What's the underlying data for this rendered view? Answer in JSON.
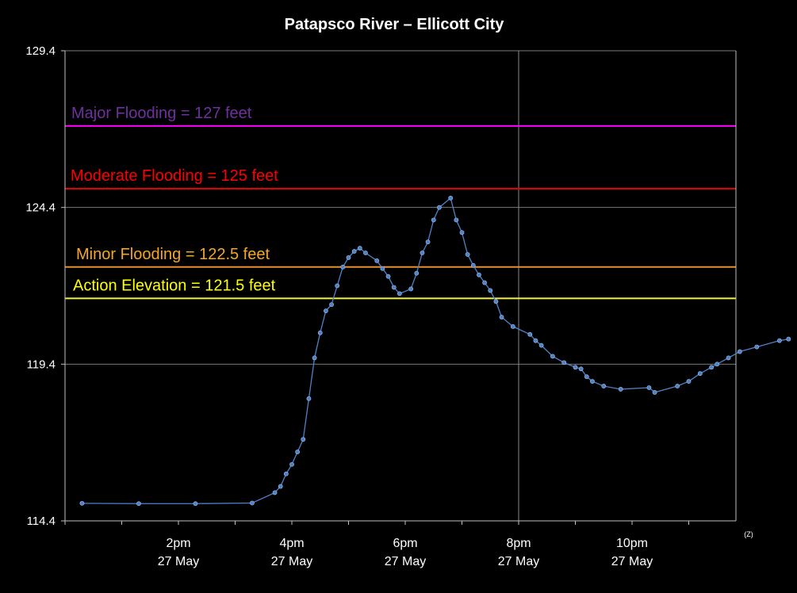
{
  "chart_data": {
    "type": "line",
    "title": "Patapsco River – Ellicott City",
    "ylim": [
      114.4,
      129.4
    ],
    "yticks": [
      "114.4",
      "119.4",
      "124.4",
      "129.4"
    ],
    "xlim": [
      11.0,
      16.9
    ],
    "xticks": [
      {
        "x": 12.0,
        "line1": "2pm",
        "line2": "27 May"
      },
      {
        "x": 13.0,
        "line1": "4pm",
        "line2": "27 May"
      },
      {
        "x": 14.0,
        "line1": "6pm",
        "line2": "27 May"
      },
      {
        "x": 15.0,
        "line1": "8pm",
        "line2": "27 May"
      },
      {
        "x": 16.0,
        "line1": "10pm",
        "line2": "27 May"
      }
    ],
    "x_unit_note": "(Z)",
    "vertical_marker_x": 15.0,
    "grid": true,
    "series": [
      {
        "color": "#4f81c7",
        "points": [
          [
            11.15,
            114.96
          ],
          [
            11.65,
            114.95
          ],
          [
            12.15,
            114.95
          ],
          [
            12.65,
            114.97
          ],
          [
            12.85,
            115.3
          ],
          [
            12.9,
            115.5
          ],
          [
            12.95,
            115.9
          ],
          [
            13.0,
            116.2
          ],
          [
            13.05,
            116.6
          ],
          [
            13.1,
            117.0
          ],
          [
            13.15,
            118.3
          ],
          [
            13.2,
            119.6
          ],
          [
            13.25,
            120.4
          ],
          [
            13.3,
            121.1
          ],
          [
            13.35,
            121.3
          ],
          [
            13.4,
            121.9
          ],
          [
            13.45,
            122.5
          ],
          [
            13.5,
            122.8
          ],
          [
            13.55,
            123.0
          ],
          [
            13.6,
            123.1
          ],
          [
            13.65,
            122.95
          ],
          [
            13.75,
            122.7
          ],
          [
            13.8,
            122.45
          ],
          [
            13.85,
            122.2
          ],
          [
            13.9,
            121.85
          ],
          [
            13.95,
            121.65
          ],
          [
            14.05,
            121.8
          ],
          [
            14.1,
            122.3
          ],
          [
            14.15,
            122.95
          ],
          [
            14.2,
            123.3
          ],
          [
            14.25,
            124.0
          ],
          [
            14.3,
            124.4
          ],
          [
            14.4,
            124.7
          ],
          [
            14.45,
            124.0
          ],
          [
            14.5,
            123.6
          ],
          [
            14.55,
            122.9
          ],
          [
            14.6,
            122.55
          ],
          [
            14.65,
            122.25
          ],
          [
            14.7,
            122.0
          ],
          [
            14.75,
            121.75
          ],
          [
            14.8,
            121.4
          ],
          [
            14.85,
            120.9
          ],
          [
            14.95,
            120.6
          ],
          [
            15.1,
            120.35
          ],
          [
            15.15,
            120.15
          ],
          [
            15.2,
            120.0
          ],
          [
            15.3,
            119.65
          ],
          [
            15.4,
            119.45
          ],
          [
            15.5,
            119.3
          ],
          [
            15.55,
            119.25
          ],
          [
            15.6,
            119.0
          ],
          [
            15.65,
            118.85
          ],
          [
            15.75,
            118.7
          ],
          [
            15.9,
            118.6
          ],
          [
            16.15,
            118.65
          ],
          [
            16.2,
            118.5
          ],
          [
            16.4,
            118.7
          ],
          [
            16.5,
            118.85
          ],
          [
            16.6,
            119.1
          ],
          [
            16.7,
            119.3
          ],
          [
            16.75,
            119.4
          ],
          [
            16.85,
            119.6
          ],
          [
            16.95,
            119.8
          ],
          [
            17.1,
            119.95
          ],
          [
            17.3,
            120.15
          ],
          [
            17.38,
            120.2
          ]
        ]
      }
    ],
    "thresholds": [
      {
        "name": "major",
        "value": 127.0,
        "label": "Major Flooding = 127 feet",
        "line_color": "#ff00ff",
        "label_color": "#7030a0"
      },
      {
        "name": "moderate",
        "value": 125.0,
        "label": "Moderate  Flooding = 125 feet",
        "line_color": "#e00000",
        "label_color": "#ff0000"
      },
      {
        "name": "minor",
        "value": 122.5,
        "label": "Minor Flooding = 122.5 feet",
        "line_color": "#e8902a",
        "label_color": "#f5a623"
      },
      {
        "name": "action",
        "value": 121.5,
        "label": "Action Elevation = 121.5 feet",
        "line_color": "#f2f24a",
        "label_color": "#ffff00"
      }
    ]
  }
}
